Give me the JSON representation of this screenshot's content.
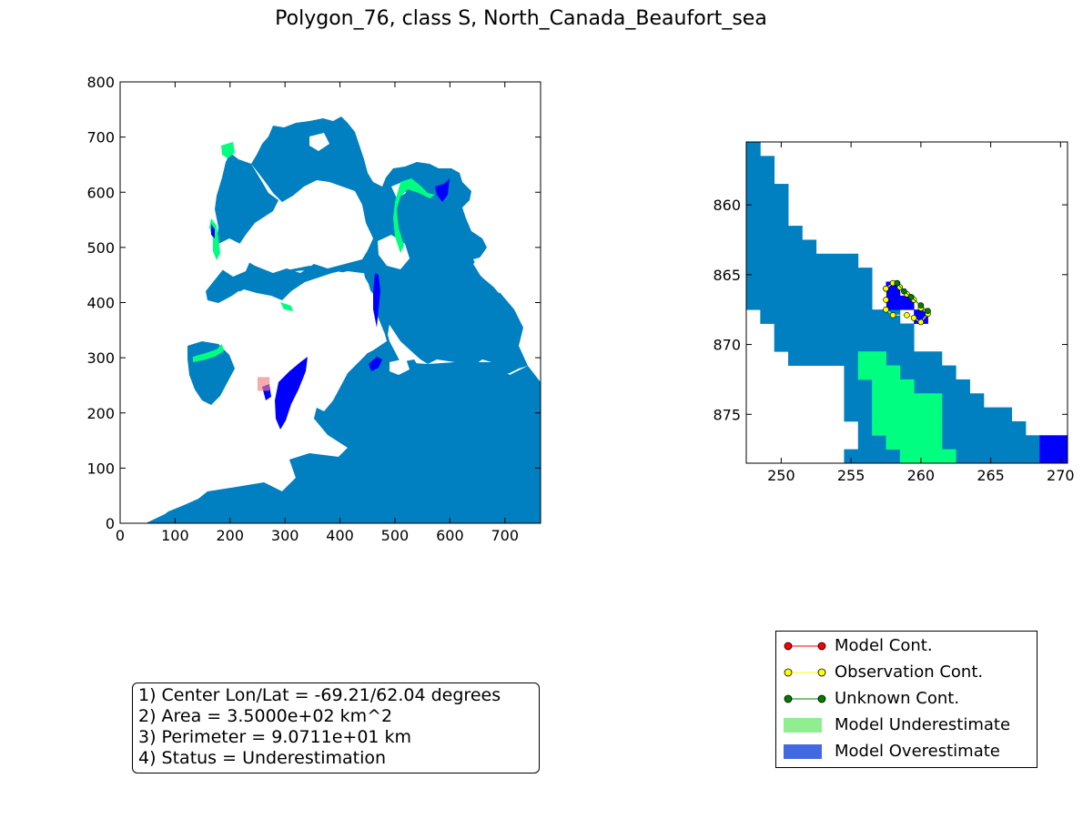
{
  "title": "Polygon_76, class S, North_Canada_Beaufort_sea",
  "colors": {
    "ocean": "#0080c0",
    "underestimate": "#00ff80",
    "overestimate": "#0000ff",
    "land": "#ffffff",
    "highlight": "#f08080",
    "legend_underestimate": "#90ee90",
    "legend_overestimate": "#4169e1",
    "model_cont": "#ff0000",
    "observation_cont": "#ffff00",
    "unknown_cont": "#008000"
  },
  "info_box": [
    "1) Center Lon/Lat = -69.21/62.04 degrees",
    "2) Area = 3.5000e+02 km^2",
    "3) Perimeter = 9.0711e+01 km",
    "4) Status = Underestimation"
  ],
  "legend": [
    {
      "label": "Model Cont.",
      "kind": "line",
      "color": "#ff0000"
    },
    {
      "label": "Observation Cont.",
      "kind": "line",
      "color": "#ffff00"
    },
    {
      "label": "Unknown Cont.",
      "kind": "line",
      "color": "#008000"
    },
    {
      "label": "Model Underestimate",
      "kind": "patch",
      "color": "#90ee90"
    },
    {
      "label": "Model Overestimate",
      "kind": "patch",
      "color": "#4169e1"
    }
  ],
  "chart_data": [
    {
      "type": "heatmap",
      "name": "overview-map",
      "xlim": [
        0,
        765
      ],
      "ylim": [
        0,
        800
      ],
      "xticks": [
        0,
        100,
        200,
        300,
        400,
        500,
        600,
        700
      ],
      "yticks": [
        0,
        100,
        200,
        300,
        400,
        500,
        600,
        700,
        800
      ],
      "highlight_box": {
        "x": [
          250,
          272
        ],
        "y": [
          240,
          265
        ]
      }
    },
    {
      "type": "heatmap",
      "name": "zoom-map",
      "xlim": [
        247.5,
        270.5
      ],
      "ylim": [
        878.5,
        855.5
      ],
      "xticks": [
        250,
        255,
        260,
        265,
        270
      ],
      "yticks": [
        860,
        865,
        870,
        875
      ],
      "ocean_cells_by_row": [
        {
          "y": 856,
          "x": [
            248,
            248
          ]
        },
        {
          "y": 857,
          "x": [
            248,
            249
          ]
        },
        {
          "y": 858,
          "x": [
            248,
            249
          ]
        },
        {
          "y": 859,
          "x": [
            248,
            250
          ]
        },
        {
          "y": 860,
          "x": [
            248,
            250
          ]
        },
        {
          "y": 861,
          "x": [
            248,
            250
          ]
        },
        {
          "y": 862,
          "x": [
            248,
            251
          ]
        },
        {
          "y": 863,
          "x": [
            248,
            252
          ]
        },
        {
          "y": 864,
          "x": [
            248,
            255
          ]
        },
        {
          "y": 865,
          "x": [
            248,
            256
          ]
        },
        {
          "y": 866,
          "x": [
            248,
            256
          ]
        },
        {
          "y": 867,
          "x": [
            248,
            256
          ]
        },
        {
          "y": 868,
          "x": [
            249,
            258
          ]
        },
        {
          "y": 869,
          "x": [
            250,
            259
          ]
        },
        {
          "y": 870,
          "x": [
            250,
            259
          ]
        },
        {
          "y": 871,
          "x": [
            251,
            261
          ]
        },
        {
          "y": 872,
          "x": [
            255,
            262
          ]
        },
        {
          "y": 873,
          "x": [
            255,
            263
          ]
        },
        {
          "y": 874,
          "x": [
            255,
            264
          ]
        },
        {
          "y": 875,
          "x": [
            255,
            266
          ]
        },
        {
          "y": 876,
          "x": [
            256,
            267
          ]
        },
        {
          "y": 877,
          "x": [
            256,
            268
          ]
        },
        {
          "y": 878,
          "x": [
            255,
            268
          ]
        }
      ],
      "underestimate_cells_by_row": [
        {
          "y": 871,
          "x": [
            256,
            257
          ]
        },
        {
          "y": 872,
          "x": [
            256,
            258
          ]
        },
        {
          "y": 873,
          "x": [
            257,
            259
          ]
        },
        {
          "y": 874,
          "x": [
            257,
            261
          ]
        },
        {
          "y": 875,
          "x": [
            257,
            261
          ]
        },
        {
          "y": 876,
          "x": [
            257,
            261
          ]
        },
        {
          "y": 877,
          "x": [
            258,
            261
          ]
        },
        {
          "y": 878,
          "x": [
            259,
            262
          ]
        }
      ],
      "overestimate_cells_by_row": [
        {
          "y": 866,
          "x": [
            258,
            258
          ]
        },
        {
          "y": 867,
          "x": [
            258,
            259
          ]
        },
        {
          "y": 868,
          "x": [
            260,
            260
          ]
        },
        {
          "y": 877,
          "x": [
            269,
            270
          ]
        },
        {
          "y": 878,
          "x": [
            269,
            270
          ]
        }
      ],
      "observation_contour": [
        [
          257.5,
          866.0
        ],
        [
          258.0,
          865.6
        ],
        [
          258.5,
          865.9
        ],
        [
          259.0,
          866.4
        ],
        [
          259.5,
          866.8
        ],
        [
          260.0,
          867.4
        ],
        [
          260.5,
          867.8
        ],
        [
          260.0,
          868.4
        ],
        [
          259.5,
          868.1
        ],
        [
          259.0,
          867.9
        ],
        [
          258.0,
          867.9
        ],
        [
          257.5,
          867.5
        ],
        [
          257.5,
          866.8
        ],
        [
          257.5,
          866.0
        ]
      ],
      "unknown_contour": [
        [
          258.3,
          865.6
        ],
        [
          258.8,
          866.2
        ],
        [
          259.3,
          866.6
        ],
        [
          260.0,
          867.2
        ],
        [
          260.5,
          867.6
        ]
      ]
    }
  ]
}
